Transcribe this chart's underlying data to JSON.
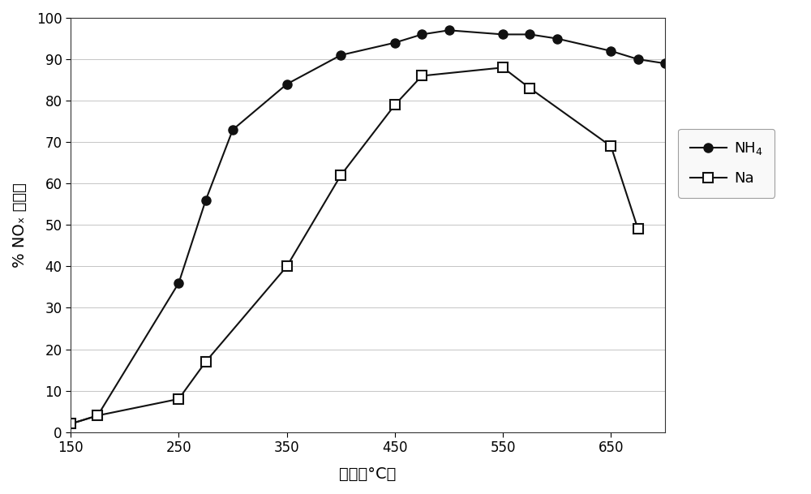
{
  "nh4_x": [
    150,
    175,
    250,
    275,
    300,
    350,
    400,
    450,
    475,
    500,
    550,
    575,
    600,
    650,
    675,
    700
  ],
  "nh4_y": [
    2,
    4,
    36,
    56,
    73,
    84,
    91,
    94,
    96,
    97,
    96,
    96,
    95,
    92,
    90,
    89
  ],
  "na_x": [
    150,
    175,
    250,
    275,
    350,
    400,
    450,
    475,
    550,
    575,
    650,
    675
  ],
  "na_y": [
    2,
    4,
    8,
    17,
    40,
    62,
    79,
    86,
    88,
    83,
    69,
    49
  ],
  "xlabel": "温度（°C）",
  "ylabel": "% NOₓ 转化率",
  "xlim": [
    150,
    700
  ],
  "ylim": [
    0,
    100
  ],
  "xticks": [
    150,
    250,
    350,
    450,
    550,
    650
  ],
  "yticks": [
    0,
    10,
    20,
    30,
    40,
    50,
    60,
    70,
    80,
    90,
    100
  ],
  "line1_color": "#111111",
  "line2_color": "#111111",
  "bg_color": "#ffffff",
  "grid_color": "#bbbbbb",
  "figsize": [
    10.0,
    6.09
  ]
}
